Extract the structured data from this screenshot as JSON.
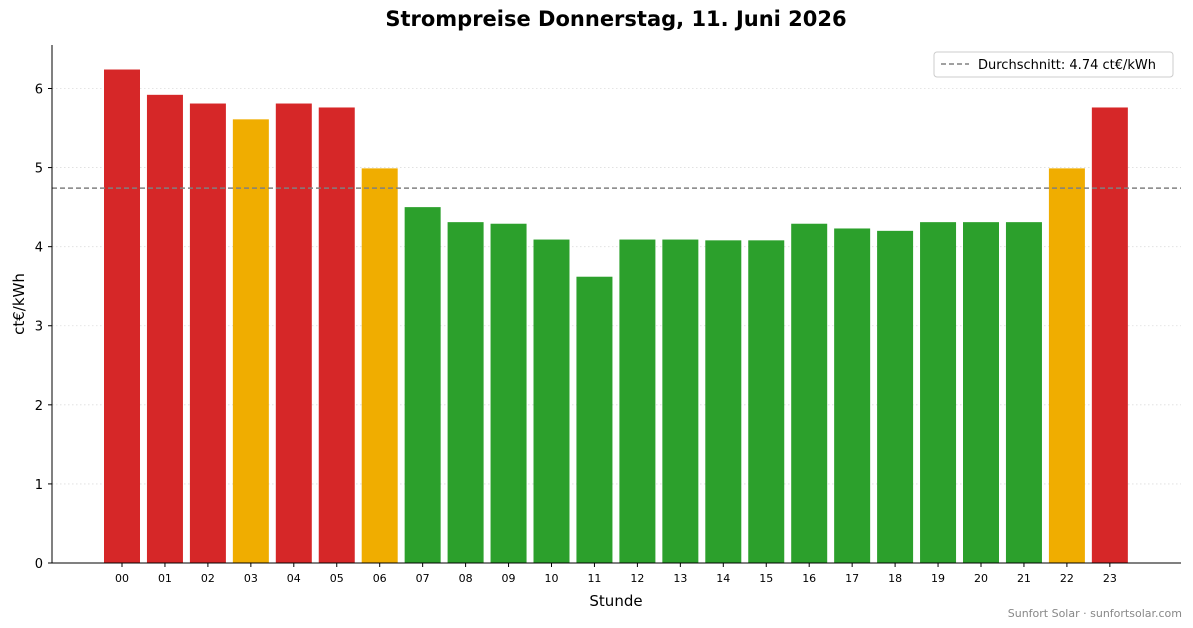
{
  "chart_data": {
    "type": "bar",
    "title": "Strompreise Donnerstag, 11. Juni 2026",
    "xlabel": "Stunde",
    "ylabel": "ct€/kWh",
    "ylim": [
      0,
      6.55
    ],
    "yticks": [
      0,
      1,
      2,
      3,
      4,
      5,
      6
    ],
    "grid": "horizontal-dotted",
    "legend_position": "top-right",
    "categories": [
      "00",
      "01",
      "02",
      "03",
      "04",
      "05",
      "06",
      "07",
      "08",
      "09",
      "10",
      "11",
      "12",
      "13",
      "14",
      "15",
      "16",
      "17",
      "18",
      "19",
      "20",
      "21",
      "22",
      "23"
    ],
    "values": [
      6.24,
      5.92,
      5.81,
      5.61,
      5.81,
      5.76,
      4.99,
      4.5,
      4.31,
      4.29,
      4.09,
      3.62,
      4.09,
      4.09,
      4.08,
      4.08,
      4.29,
      4.23,
      4.2,
      4.31,
      4.31,
      4.31,
      4.99,
      5.76
    ],
    "bar_levels": [
      "high",
      "high",
      "high",
      "mid",
      "high",
      "high",
      "mid",
      "low",
      "low",
      "low",
      "low",
      "low",
      "low",
      "low",
      "low",
      "low",
      "low",
      "low",
      "low",
      "low",
      "low",
      "low",
      "mid",
      "high"
    ],
    "average": {
      "value": 4.74,
      "label": "Durchschnitt: 4.74 ct€/kWh"
    },
    "colors": {
      "high": "#d62728",
      "mid": "#f0ad00",
      "low": "#2ca02c",
      "average_line": "#808080"
    }
  },
  "footer": {
    "text": "Sunfort Solar · sunfortsolar.com"
  }
}
